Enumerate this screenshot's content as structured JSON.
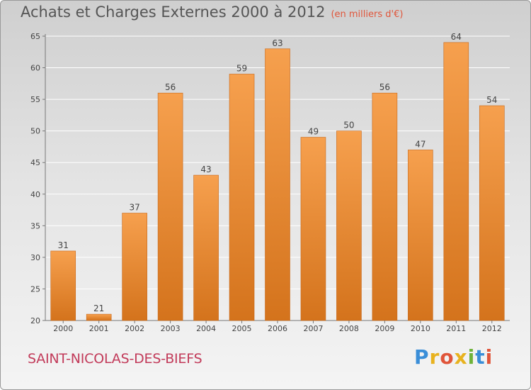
{
  "title": "Achats et Charges Externes 2000 à 2012",
  "subtitle": "(en milliers d'€)",
  "commune": "SAINT-NICOLAS-DES-BIEFS",
  "brand": {
    "text": "Proxiti",
    "letters": [
      {
        "ch": "P",
        "color": "#3a8ed8"
      },
      {
        "ch": "r",
        "color": "#e8b21e"
      },
      {
        "ch": "o",
        "color": "#e0553a"
      },
      {
        "ch": "x",
        "color": "#e8b21e"
      },
      {
        "ch": "i",
        "color": "#6fb33a"
      },
      {
        "ch": "t",
        "color": "#3a8ed8"
      },
      {
        "ch": "i",
        "color": "#e0553a"
      }
    ]
  },
  "colors": {
    "bar_light": "#f6a04e",
    "bar_dark": "#d4731c",
    "grid": "#ffffff",
    "axis_text": "#444444"
  },
  "chart_data": {
    "type": "bar",
    "title": "Achats et Charges Externes 2000 à 2012",
    "subtitle": "(en milliers d'€)",
    "categories": [
      "2000",
      "2001",
      "2002",
      "2003",
      "2004",
      "2005",
      "2006",
      "2007",
      "2008",
      "2009",
      "2010",
      "2011",
      "2012"
    ],
    "values": [
      31,
      21,
      37,
      56,
      43,
      59,
      63,
      49,
      50,
      56,
      47,
      64,
      54
    ],
    "ylim": [
      20,
      65
    ],
    "yticks": [
      20,
      25,
      30,
      35,
      40,
      45,
      50,
      55,
      60,
      65
    ],
    "grid": true,
    "data_labels": true
  }
}
